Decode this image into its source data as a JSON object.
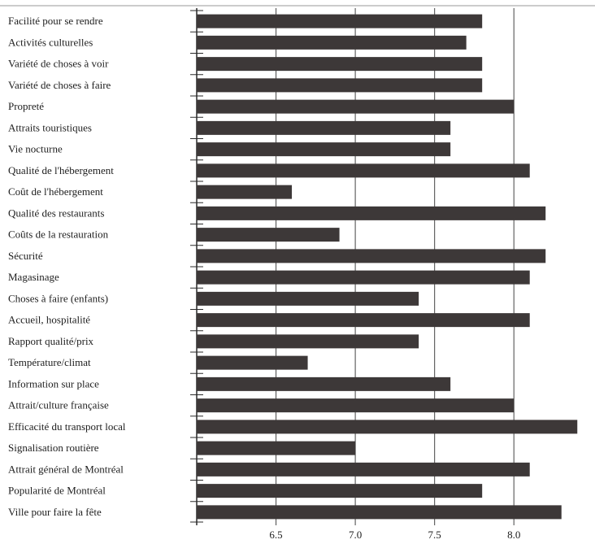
{
  "chart_data": {
    "type": "bar",
    "orientation": "horizontal",
    "categories": [
      "Facilité pour se rendre",
      "Activités culturelles",
      "Variété de choses à voir",
      "Variété de choses à faire",
      "Propreté",
      "Attraits touristiques",
      "Vie nocturne",
      "Qualité de l'hébergement",
      "Coût de l'hébergement",
      "Qualité des restaurants",
      "Coûts de la restauration",
      "Sécurité",
      "Magasinage",
      "Choses à faire (enfants)",
      "Accueil, hospitalité",
      "Rapport qualité/prix",
      "Température/climat",
      "Information sur place",
      "Attrait/culture française",
      "Efficacité du transport local",
      "Signalisation routière",
      "Attrait général de Montréal",
      "Popularité de Montréal",
      "Ville pour faire la fête"
    ],
    "values": [
      7.8,
      7.7,
      7.8,
      7.8,
      8.0,
      7.6,
      7.6,
      8.1,
      6.6,
      8.2,
      6.9,
      8.2,
      8.1,
      7.4,
      8.1,
      7.4,
      6.7,
      7.6,
      8.0,
      8.4,
      7.0,
      8.1,
      7.8,
      8.3
    ],
    "xlim": [
      6.0,
      8.45
    ],
    "xticks": [
      "6.5",
      "7.0",
      "7.5",
      "8.0"
    ],
    "title": "",
    "xlabel": "",
    "ylabel": "",
    "grid": "vertical",
    "bar_color": "#3d3838",
    "grid_color": "#555555"
  }
}
